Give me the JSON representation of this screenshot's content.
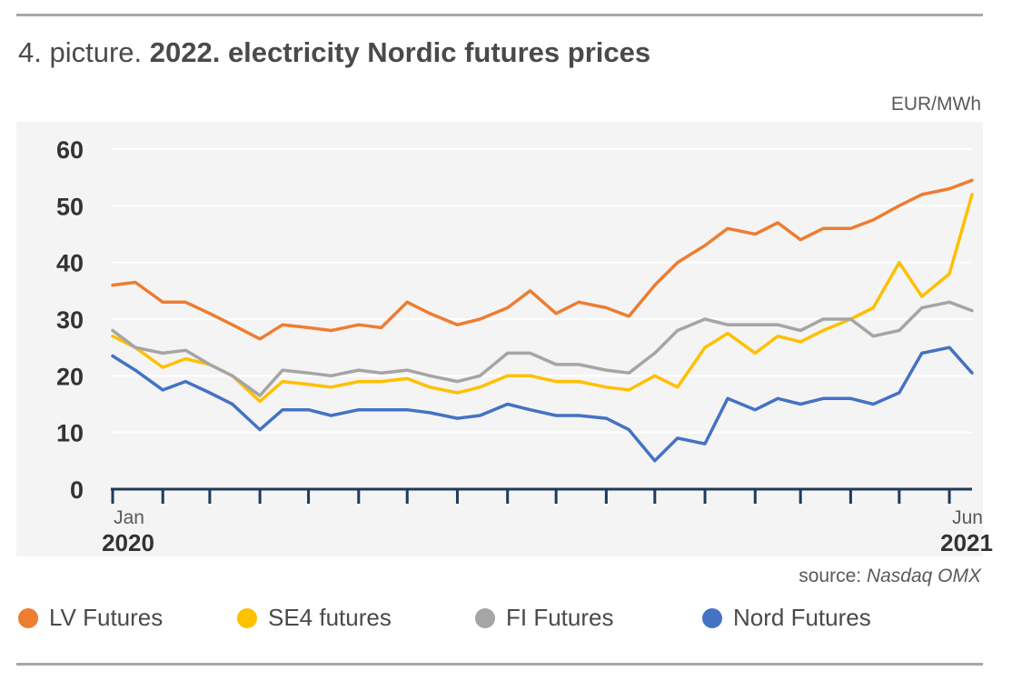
{
  "header": {
    "title_prefix": "4. picture.",
    "title_bold": "2022. electricity Nordic futures prices",
    "unit": "EUR/MWh"
  },
  "source": {
    "label": "source:",
    "name": "Nasdaq OMX"
  },
  "chart_data": {
    "type": "line",
    "title": "2022. electricity Nordic futures prices",
    "ylabel": "EUR/MWh",
    "ylim": [
      0,
      60
    ],
    "yticks": [
      0,
      10,
      20,
      30,
      40,
      50,
      60
    ],
    "grid": true,
    "legend_position": "bottom",
    "x_start_label": {
      "month": "Jan",
      "year": "2020"
    },
    "x_end_label": {
      "month": "Jun",
      "year": "2021"
    },
    "x_months": [
      "2020-01",
      "2020-02",
      "2020-03",
      "2020-04",
      "2020-05",
      "2020-06",
      "2020-07",
      "2020-08",
      "2020-09",
      "2020-10",
      "2020-11",
      "2020-12",
      "2021-01",
      "2021-02",
      "2021-03",
      "2021-04",
      "2021-05",
      "2021-06"
    ],
    "x": [
      "2020-01-01",
      "2020-01-15",
      "2020-02-01",
      "2020-02-15",
      "2020-03-01",
      "2020-03-15",
      "2020-04-01",
      "2020-04-15",
      "2020-05-01",
      "2020-05-15",
      "2020-06-01",
      "2020-06-15",
      "2020-07-01",
      "2020-07-15",
      "2020-08-01",
      "2020-08-15",
      "2020-09-01",
      "2020-09-15",
      "2020-10-01",
      "2020-10-15",
      "2020-11-01",
      "2020-11-15",
      "2020-12-01",
      "2020-12-15",
      "2021-01-01",
      "2021-01-15",
      "2021-02-01",
      "2021-02-15",
      "2021-03-01",
      "2021-03-15",
      "2021-04-01",
      "2021-04-15",
      "2021-05-01",
      "2021-05-15",
      "2021-06-01",
      "2021-06-15"
    ],
    "series": [
      {
        "name": "LV Futures",
        "color": "#ed7d31",
        "values": [
          36,
          36.5,
          33,
          33,
          31,
          29,
          26.5,
          29,
          28.5,
          28,
          29,
          28.5,
          33,
          31,
          29,
          30,
          32,
          35,
          31,
          33,
          32,
          30.5,
          36,
          40,
          43,
          46,
          45,
          47,
          44,
          46,
          46,
          47.5,
          50,
          52,
          53,
          54.5
        ]
      },
      {
        "name": "SE4 futures",
        "color": "#ffc000",
        "values": [
          27,
          25,
          21.5,
          23,
          22,
          20,
          15.5,
          19,
          18.5,
          18,
          19,
          19,
          19.5,
          18,
          17,
          18,
          20,
          20,
          19,
          19,
          18,
          17.5,
          20,
          18,
          25,
          27.5,
          24,
          27,
          26,
          28,
          30,
          32,
          40,
          34,
          38,
          52
        ]
      },
      {
        "name": "FI Futures",
        "color": "#a5a5a5",
        "values": [
          28,
          25,
          24,
          24.5,
          22,
          20,
          16.5,
          21,
          20.5,
          20,
          21,
          20.5,
          21,
          20,
          19,
          20,
          24,
          24,
          22,
          22,
          21,
          20.5,
          24,
          28,
          30,
          29,
          29,
          29,
          28,
          30,
          30,
          27,
          28,
          32,
          33,
          31.5
        ]
      },
      {
        "name": "Nord Futures",
        "color": "#4472c4",
        "values": [
          23.5,
          21,
          17.5,
          19,
          17,
          15,
          10.5,
          14,
          14,
          13,
          14,
          14,
          14,
          13.5,
          12.5,
          13,
          15,
          14,
          13,
          13,
          12.5,
          10.5,
          5,
          9,
          8,
          16,
          14,
          16,
          15,
          16,
          16,
          15,
          17,
          24,
          25,
          20.5
        ]
      }
    ]
  }
}
